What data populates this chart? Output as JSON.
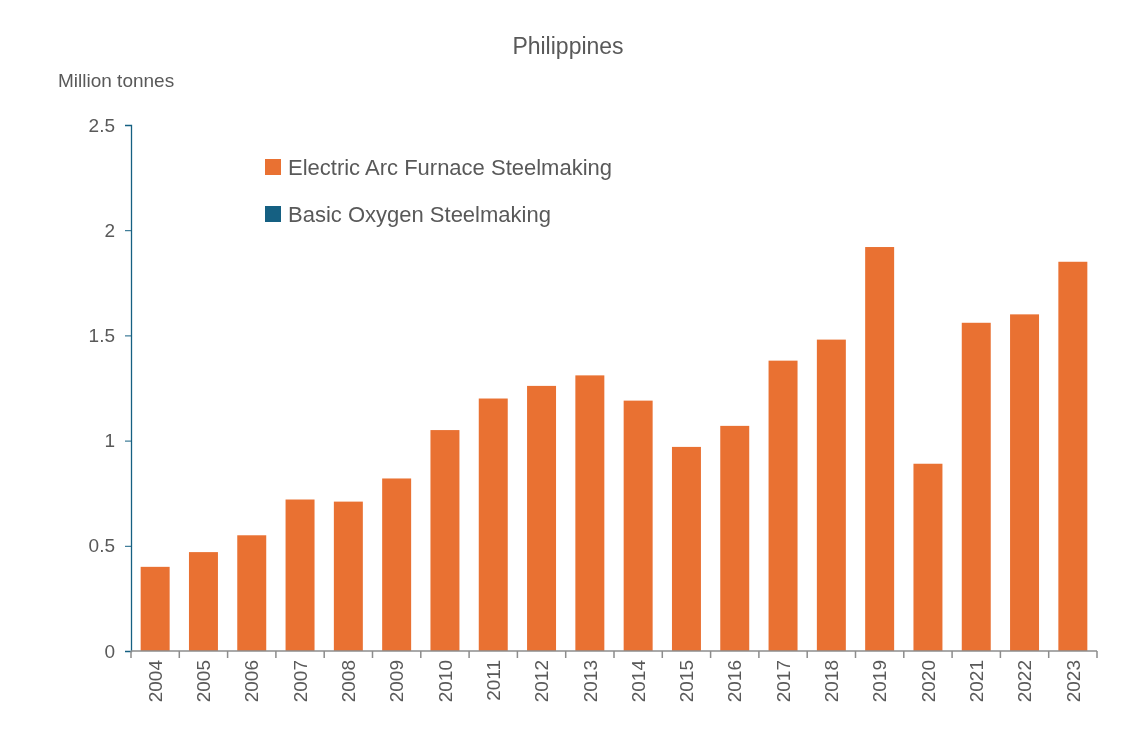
{
  "chart_data": {
    "type": "bar",
    "title": "Philippines",
    "ylabel": "Million tonnes",
    "categories": [
      "2004",
      "2005",
      "2006",
      "2007",
      "2008",
      "2009",
      "2010",
      "2011",
      "2012",
      "2013",
      "2014",
      "2015",
      "2016",
      "2017",
      "2018",
      "2019",
      "2020",
      "2021",
      "2022",
      "2023"
    ],
    "series": [
      {
        "name": "Electric Arc Furnace Steelmaking",
        "color": "#e97132",
        "values": [
          0.4,
          0.47,
          0.55,
          0.72,
          0.71,
          0.82,
          1.05,
          1.2,
          1.26,
          1.31,
          1.19,
          0.97,
          1.07,
          1.38,
          1.48,
          1.92,
          0.89,
          1.56,
          1.6,
          1.85
        ]
      },
      {
        "name": "Basic Oxygen Steelmaking",
        "color": "#156082",
        "values": [
          null,
          null,
          null,
          null,
          null,
          null,
          null,
          null,
          null,
          null,
          null,
          null,
          null,
          null,
          null,
          null,
          null,
          null,
          null,
          null
        ]
      }
    ],
    "stacked": true,
    "ylim": [
      0,
      2.5
    ],
    "yticks": [
      0,
      0.5,
      1,
      1.5,
      2,
      2.5
    ],
    "grid": false,
    "legend": "top left"
  }
}
